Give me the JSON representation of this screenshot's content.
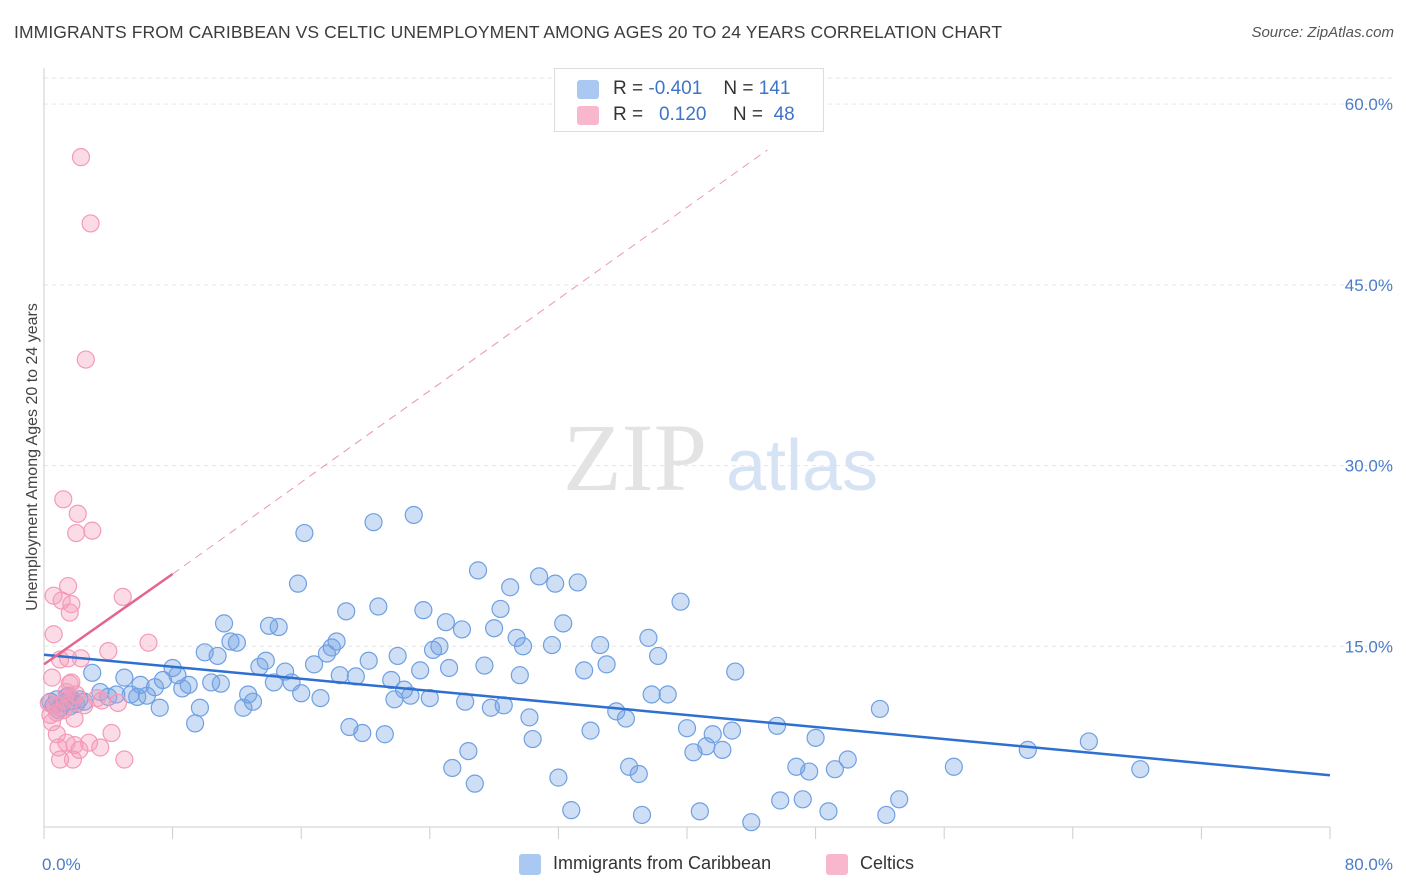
{
  "header": {
    "title": "IMMIGRANTS FROM CARIBBEAN VS CELTIC UNEMPLOYMENT AMONG AGES 20 TO 24 YEARS CORRELATION CHART",
    "source": "Source: ZipAtlas.com"
  },
  "watermark": {
    "zip": "ZIP",
    "atlas": "atlas"
  },
  "legend": {
    "rows": [
      {
        "r_label": "R =",
        "r_value": "-0.401",
        "n_label": "N =",
        "n_value": "141",
        "color": "#a9c9f2"
      },
      {
        "r_label": "R =",
        "r_value": "0.120",
        "n_label": "N =",
        "n_value": "48",
        "color": "#f8b7cc"
      }
    ]
  },
  "bottom_legend": {
    "items": [
      {
        "label": "Immigrants from Caribbean",
        "color": "#a9c9f2"
      },
      {
        "label": "Celtics",
        "color": "#f8b7cc"
      }
    ]
  },
  "chart_data": {
    "type": "scatter",
    "title": "IMMIGRANTS FROM CARIBBEAN VS CELTIC UNEMPLOYMENT AMONG AGES 20 TO 24 YEARS CORRELATION CHART",
    "ylabel": "Unemployment Among Ages 20 to 24 years",
    "xlabel": "",
    "xlim": [
      0,
      80
    ],
    "ylim": [
      0,
      63
    ],
    "x_tick_labels": [
      {
        "value": 0,
        "label": "0.0%"
      },
      {
        "value": 80,
        "label": "80.0%"
      }
    ],
    "y_tick_labels": [
      {
        "value": 15,
        "label": "15.0%"
      },
      {
        "value": 30,
        "label": "30.0%"
      },
      {
        "value": 45,
        "label": "45.0%"
      },
      {
        "value": 60,
        "label": "60.0%"
      }
    ],
    "grid": true,
    "legend_placement": "top-center",
    "series": [
      {
        "name": "Immigrants from Caribbean",
        "color": "#6fa0e2",
        "trend_color": "#2e6fd0",
        "trend": {
          "x": [
            0,
            80
          ],
          "y": [
            14.3,
            4.3
          ]
        },
        "points": [
          [
            0.4,
            10.4
          ],
          [
            0.6,
            10.1
          ],
          [
            0.8,
            10.6
          ],
          [
            1.0,
            9.9
          ],
          [
            1.2,
            10.3
          ],
          [
            1.4,
            10.8
          ],
          [
            1.6,
            10.0
          ],
          [
            1.8,
            10.5
          ],
          [
            2.0,
            10.2
          ],
          [
            2.2,
            10.6
          ],
          [
            2.5,
            10.4
          ],
          [
            3.0,
            12.8
          ],
          [
            3.5,
            11.2
          ],
          [
            4.0,
            10.8
          ],
          [
            4.5,
            11.0
          ],
          [
            5.0,
            12.4
          ],
          [
            5.4,
            11.0
          ],
          [
            5.8,
            10.8
          ],
          [
            6.0,
            11.8
          ],
          [
            6.4,
            10.9
          ],
          [
            6.9,
            11.6
          ],
          [
            7.2,
            9.9
          ],
          [
            7.4,
            12.2
          ],
          [
            8.0,
            13.2
          ],
          [
            8.3,
            12.6
          ],
          [
            8.6,
            11.5
          ],
          [
            9.0,
            11.8
          ],
          [
            9.4,
            8.6
          ],
          [
            9.7,
            9.9
          ],
          [
            10.0,
            14.5
          ],
          [
            10.4,
            12.0
          ],
          [
            10.8,
            14.2
          ],
          [
            11.0,
            11.9
          ],
          [
            11.2,
            16.9
          ],
          [
            11.6,
            15.4
          ],
          [
            12.0,
            15.3
          ],
          [
            12.4,
            9.9
          ],
          [
            12.7,
            11.0
          ],
          [
            13.0,
            10.4
          ],
          [
            13.4,
            13.3
          ],
          [
            13.8,
            13.8
          ],
          [
            14.0,
            16.7
          ],
          [
            14.3,
            12.0
          ],
          [
            14.6,
            16.6
          ],
          [
            15.0,
            12.9
          ],
          [
            15.4,
            12.0
          ],
          [
            15.8,
            20.2
          ],
          [
            16.0,
            11.1
          ],
          [
            16.2,
            24.4
          ],
          [
            16.8,
            13.5
          ],
          [
            17.2,
            10.7
          ],
          [
            17.6,
            14.4
          ],
          [
            17.9,
            14.9
          ],
          [
            18.2,
            15.4
          ],
          [
            18.4,
            12.6
          ],
          [
            18.8,
            17.9
          ],
          [
            19.0,
            8.3
          ],
          [
            19.4,
            12.5
          ],
          [
            19.8,
            7.8
          ],
          [
            20.2,
            13.8
          ],
          [
            20.5,
            25.3
          ],
          [
            20.8,
            18.3
          ],
          [
            21.2,
            7.7
          ],
          [
            21.6,
            12.2
          ],
          [
            21.8,
            10.6
          ],
          [
            22.0,
            14.2
          ],
          [
            22.4,
            11.4
          ],
          [
            22.8,
            10.9
          ],
          [
            23.0,
            25.9
          ],
          [
            23.4,
            13.0
          ],
          [
            23.6,
            18.0
          ],
          [
            24.0,
            10.7
          ],
          [
            24.2,
            14.7
          ],
          [
            24.6,
            15.0
          ],
          [
            25.0,
            17.0
          ],
          [
            25.2,
            13.2
          ],
          [
            25.4,
            4.9
          ],
          [
            26.0,
            16.4
          ],
          [
            26.2,
            10.4
          ],
          [
            26.4,
            6.3
          ],
          [
            26.8,
            3.6
          ],
          [
            27.0,
            21.3
          ],
          [
            27.4,
            13.4
          ],
          [
            27.8,
            9.9
          ],
          [
            28.0,
            16.5
          ],
          [
            28.4,
            18.1
          ],
          [
            28.6,
            10.1
          ],
          [
            29.0,
            19.9
          ],
          [
            29.4,
            15.7
          ],
          [
            29.6,
            12.6
          ],
          [
            29.8,
            15.0
          ],
          [
            30.2,
            9.1
          ],
          [
            30.4,
            7.3
          ],
          [
            30.8,
            20.8
          ],
          [
            31.6,
            15.1
          ],
          [
            31.8,
            20.2
          ],
          [
            32.0,
            4.1
          ],
          [
            32.3,
            16.9
          ],
          [
            32.8,
            1.4
          ],
          [
            33.2,
            20.3
          ],
          [
            33.6,
            13.0
          ],
          [
            34.0,
            8.0
          ],
          [
            34.6,
            15.1
          ],
          [
            35.0,
            13.5
          ],
          [
            35.6,
            9.6
          ],
          [
            36.2,
            9.0
          ],
          [
            36.4,
            5.0
          ],
          [
            37.0,
            4.4
          ],
          [
            37.2,
            1.0
          ],
          [
            37.6,
            15.7
          ],
          [
            37.8,
            11.0
          ],
          [
            38.2,
            14.2
          ],
          [
            38.8,
            11.0
          ],
          [
            39.6,
            18.7
          ],
          [
            40.0,
            8.2
          ],
          [
            40.4,
            6.2
          ],
          [
            40.8,
            1.3
          ],
          [
            41.2,
            6.7
          ],
          [
            41.6,
            7.7
          ],
          [
            42.2,
            6.4
          ],
          [
            42.8,
            8.0
          ],
          [
            43.0,
            12.9
          ],
          [
            44.0,
            0.4
          ],
          [
            45.6,
            8.4
          ],
          [
            45.8,
            2.2
          ],
          [
            46.8,
            5.0
          ],
          [
            47.2,
            2.3
          ],
          [
            48.0,
            7.4
          ],
          [
            48.8,
            1.3
          ],
          [
            49.2,
            4.8
          ],
          [
            50.0,
            5.6
          ],
          [
            52.0,
            9.8
          ],
          [
            52.4,
            1.0
          ],
          [
            53.2,
            2.3
          ],
          [
            56.6,
            5.0
          ],
          [
            61.2,
            6.4
          ],
          [
            65.0,
            7.1
          ],
          [
            68.2,
            4.8
          ],
          [
            47.6,
            4.6
          ],
          [
            0.9,
            9.7
          ],
          [
            1.5,
            10.9
          ]
        ]
      },
      {
        "name": "Celtics",
        "color": "#f49ab8",
        "trend_color": "#e4668f",
        "trend": {
          "x": [
            0,
            8
          ],
          "y": [
            13.5,
            21.0
          ]
        },
        "trend_extension": {
          "x": [
            8,
            45
          ],
          "y": [
            21.0,
            56.2
          ]
        },
        "points": [
          [
            0.3,
            10.3
          ],
          [
            0.4,
            9.3
          ],
          [
            0.5,
            8.7
          ],
          [
            0.5,
            12.4
          ],
          [
            0.6,
            16.0
          ],
          [
            0.6,
            19.2
          ],
          [
            0.7,
            10.1
          ],
          [
            0.8,
            7.7
          ],
          [
            0.8,
            9.5
          ],
          [
            0.9,
            6.6
          ],
          [
            1.0,
            5.6
          ],
          [
            1.0,
            13.9
          ],
          [
            1.1,
            18.8
          ],
          [
            1.2,
            9.7
          ],
          [
            1.2,
            27.2
          ],
          [
            1.3,
            10.5
          ],
          [
            1.4,
            11.2
          ],
          [
            1.4,
            7.0
          ],
          [
            1.5,
            14.0
          ],
          [
            1.5,
            20.0
          ],
          [
            1.6,
            11.9
          ],
          [
            1.6,
            17.8
          ],
          [
            1.7,
            12.0
          ],
          [
            1.7,
            18.5
          ],
          [
            1.8,
            5.6
          ],
          [
            1.8,
            10.6
          ],
          [
            1.9,
            6.8
          ],
          [
            1.9,
            9.0
          ],
          [
            2.0,
            24.4
          ],
          [
            2.0,
            11.0
          ],
          [
            2.1,
            26.0
          ],
          [
            2.2,
            6.4
          ],
          [
            2.3,
            14.0
          ],
          [
            2.3,
            55.6
          ],
          [
            2.5,
            10.1
          ],
          [
            2.6,
            38.8
          ],
          [
            2.8,
            7.0
          ],
          [
            2.9,
            50.1
          ],
          [
            3.0,
            24.6
          ],
          [
            3.3,
            10.7
          ],
          [
            3.5,
            6.6
          ],
          [
            3.6,
            10.5
          ],
          [
            4.0,
            14.6
          ],
          [
            4.2,
            7.8
          ],
          [
            4.6,
            10.3
          ],
          [
            4.9,
            19.1
          ],
          [
            5.0,
            5.6
          ],
          [
            6.5,
            15.3
          ]
        ]
      }
    ]
  }
}
